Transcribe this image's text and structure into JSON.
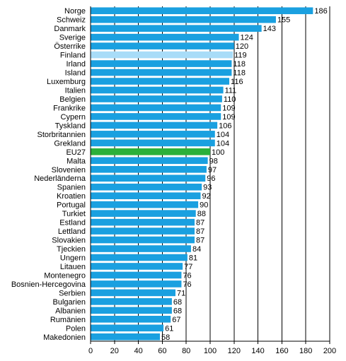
{
  "chart_data": {
    "type": "bar",
    "orientation": "horizontal",
    "categories": [
      "Norge",
      "Schweiz",
      "Danmark",
      "Sverige",
      "Österrike",
      "Finland",
      "Irland",
      "Island",
      "Luxemburg",
      "Italien",
      "Belgien",
      "Frankrike",
      "Cypern",
      "Tyskland",
      "Storbritannien",
      "Grekland",
      "EU27",
      "Malta",
      "Slovenien",
      "Nederländerna",
      "Spanien",
      "Kroatien",
      "Portugal",
      "Turkiet",
      "Estland",
      "Lettland",
      "Slovakien",
      "Tjeckien",
      "Ungern",
      "Litauen",
      "Montenegro",
      "Bosnien-Hercegovina",
      "Serbien",
      "Bulgarien",
      "Albanien",
      "Rumänien",
      "Polen",
      "Makedonien"
    ],
    "values": [
      186,
      155,
      143,
      124,
      120,
      119,
      118,
      118,
      116,
      111,
      110,
      109,
      109,
      106,
      104,
      104,
      100,
      98,
      97,
      96,
      93,
      92,
      90,
      88,
      87,
      87,
      87,
      84,
      81,
      77,
      76,
      76,
      71,
      68,
      68,
      67,
      61,
      58
    ],
    "xlim": [
      0,
      200
    ],
    "xticks": [
      0,
      20,
      40,
      60,
      80,
      100,
      120,
      140,
      160,
      180,
      200
    ],
    "grid": "vertical",
    "colors": {
      "default": "#1aa0e0",
      "Finland": "#a8dcf8",
      "EU27": "#2bb03a"
    }
  }
}
